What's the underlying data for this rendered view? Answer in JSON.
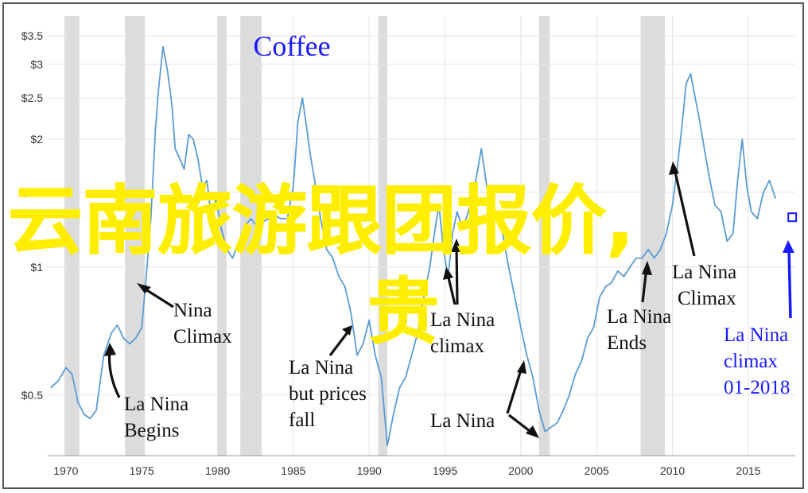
{
  "overlay": {
    "line1": "云南旅游跟团报价,",
    "line2": "贵"
  },
  "chart_data": {
    "type": "line",
    "title": "Coffee",
    "xlabel": "",
    "ylabel": "",
    "x_ticks": [
      "1970",
      "1975",
      "1980",
      "1985",
      "1990",
      "1995",
      "2000",
      "2005",
      "2010",
      "2015"
    ],
    "y_ticks": [
      "$3.5",
      "$3",
      "$2.5",
      "$2",
      "$1.5",
      "$1",
      "$0.5"
    ],
    "y_tick_values": [
      3.5,
      3,
      2.5,
      2,
      1.5,
      1,
      0.5
    ],
    "y_scale": "log",
    "xlim": [
      1968.8,
      2018.1
    ],
    "ylim": [
      0.36,
      3.9
    ],
    "grid": true,
    "line_color": "#5b9bd5",
    "recession_color": "#dcdcdc",
    "shaded_periods": [
      [
        1969.9,
        1970.9
      ],
      [
        1973.9,
        1975.2
      ],
      [
        1980.0,
        1980.6
      ],
      [
        1981.5,
        1982.9
      ],
      [
        1990.6,
        1991.2
      ],
      [
        2001.2,
        2001.9
      ],
      [
        2007.9,
        2009.5
      ]
    ],
    "series": [
      {
        "x": [
          1969.0,
          1969.5,
          1970.0,
          1970.4,
          1970.8,
          1971.2,
          1971.6,
          1972.0,
          1972.5,
          1973.0,
          1973.4,
          1973.8,
          1974.2,
          1974.6,
          1975.0,
          1975.3,
          1975.6,
          1975.9,
          1976.1,
          1976.4,
          1976.7,
          1977.0,
          1977.2,
          1977.5,
          1977.8,
          1978.1,
          1978.4,
          1978.7,
          1979.0,
          1979.3,
          1979.6,
          1979.9,
          1980.2,
          1980.6,
          1981.0,
          1981.4,
          1981.8,
          1982.2,
          1982.6,
          1983.0,
          1983.4,
          1983.8,
          1984.2,
          1984.6,
          1985.0,
          1985.3,
          1985.6,
          1985.9,
          1986.1,
          1986.4,
          1986.8,
          1987.2,
          1987.6,
          1988.0,
          1988.4,
          1988.8,
          1989.2,
          1989.6,
          1990.0,
          1990.4,
          1990.8,
          1991.2,
          1991.6,
          1992.0,
          1992.4,
          1992.8,
          1993.2,
          1993.6,
          1994.0,
          1994.3,
          1994.6,
          1994.9,
          1995.2,
          1995.5,
          1995.8,
          1996.1,
          1996.4,
          1996.8,
          1997.1,
          1997.4,
          1997.7,
          1998.0,
          1998.4,
          1998.8,
          1999.2,
          1999.6,
          2000.0,
          2000.4,
          2000.8,
          2001.2,
          2001.6,
          2002.0,
          2002.4,
          2002.8,
          2003.2,
          2003.6,
          2004.0,
          2004.4,
          2004.8,
          2005.2,
          2005.6,
          2006.0,
          2006.4,
          2006.8,
          2007.2,
          2007.6,
          2008.0,
          2008.4,
          2008.8,
          2009.2,
          2009.6,
          2010.0,
          2010.3,
          2010.6,
          2010.9,
          2011.2,
          2011.5,
          2011.8,
          2012.1,
          2012.4,
          2012.8,
          2013.2,
          2013.6,
          2014.0,
          2014.3,
          2014.6,
          2014.9,
          2015.2,
          2015.6,
          2016.0,
          2016.4,
          2016.8
        ],
        "values": [
          0.52,
          0.54,
          0.58,
          0.56,
          0.48,
          0.45,
          0.44,
          0.46,
          0.62,
          0.7,
          0.73,
          0.68,
          0.66,
          0.68,
          0.72,
          0.95,
          1.3,
          2.1,
          2.6,
          3.3,
          2.9,
          2.4,
          1.9,
          1.8,
          1.7,
          2.05,
          2.0,
          1.8,
          1.55,
          1.6,
          1.3,
          1.45,
          1.25,
          1.1,
          1.05,
          1.15,
          1.25,
          1.3,
          1.25,
          1.28,
          1.3,
          1.32,
          1.3,
          1.3,
          1.55,
          2.2,
          2.5,
          2.1,
          1.85,
          1.6,
          1.3,
          1.1,
          1.05,
          0.95,
          0.9,
          0.78,
          0.62,
          0.66,
          0.75,
          0.62,
          0.55,
          0.38,
          0.45,
          0.52,
          0.55,
          0.62,
          0.7,
          0.85,
          1.0,
          1.2,
          1.4,
          1.1,
          0.95,
          1.2,
          1.35,
          1.25,
          1.3,
          1.45,
          1.65,
          1.9,
          1.6,
          1.35,
          1.3,
          1.2,
          1.0,
          0.85,
          0.72,
          0.62,
          0.55,
          0.46,
          0.41,
          0.42,
          0.43,
          0.46,
          0.5,
          0.56,
          0.6,
          0.68,
          0.72,
          0.85,
          0.9,
          0.92,
          0.98,
          0.95,
          1.0,
          1.05,
          1.05,
          1.1,
          1.05,
          1.1,
          1.2,
          1.4,
          1.7,
          2.1,
          2.7,
          2.85,
          2.5,
          2.2,
          1.9,
          1.65,
          1.4,
          1.35,
          1.15,
          1.2,
          1.6,
          2.0,
          1.55,
          1.35,
          1.3,
          1.5,
          1.6,
          1.45
        ]
      }
    ],
    "annotations": [
      {
        "lines": [
          "Nina",
          "Climax"
        ]
      },
      {
        "lines": [
          "La Nina",
          "Begins"
        ]
      },
      {
        "lines": [
          "La Nina",
          "but prices",
          "fall"
        ]
      },
      {
        "lines": [
          "La Nina",
          "climax"
        ]
      },
      {
        "lines": [
          "La Nina"
        ]
      },
      {
        "lines": [
          "La Nina",
          "Ends"
        ]
      },
      {
        "lines": [
          "La Nina",
          "Climax"
        ]
      },
      {
        "lines": [
          "La Nina",
          "climax",
          "01-2018"
        ],
        "color": "#1a1aff"
      }
    ],
    "marker": {
      "x": 2017.9,
      "value": 1.31
    }
  }
}
